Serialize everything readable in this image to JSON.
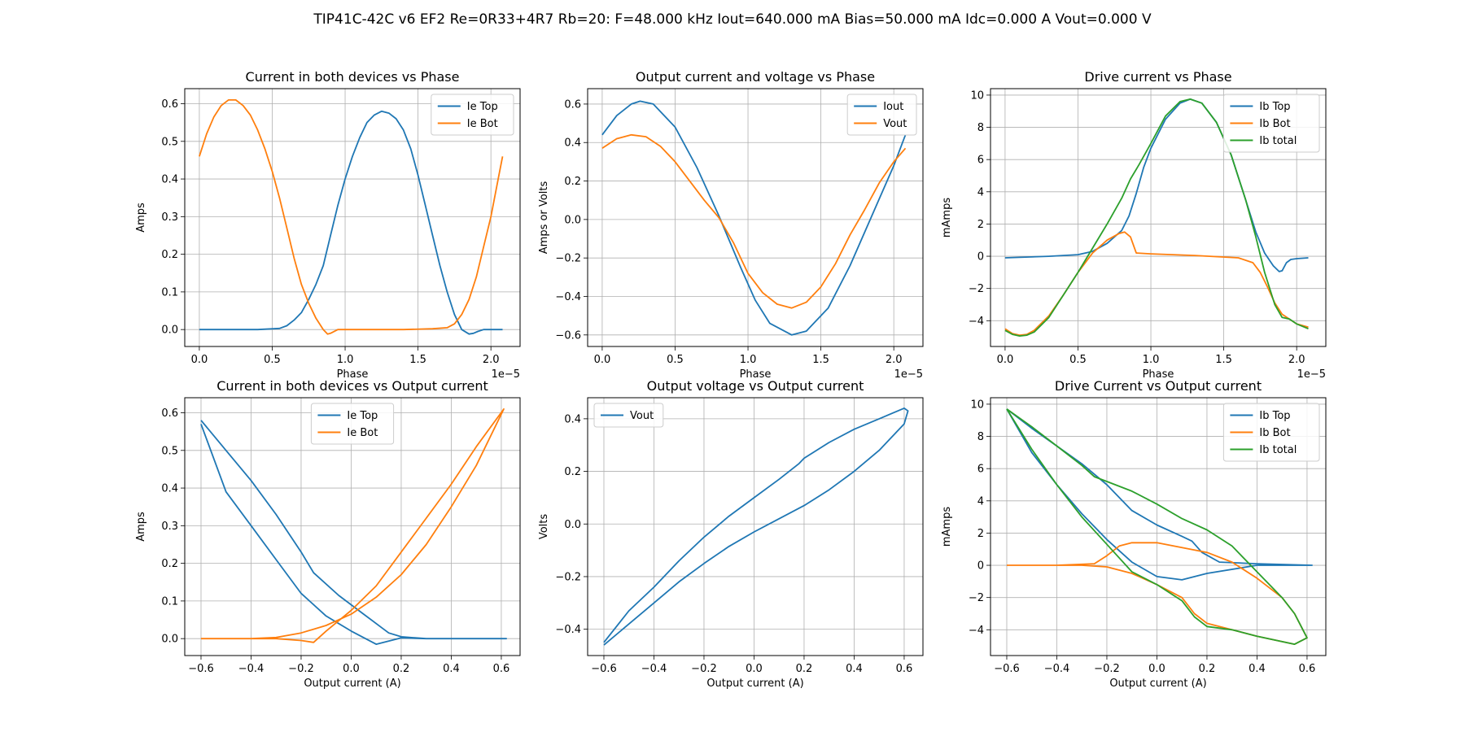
{
  "figure": {
    "title": "TIP41C-42C v6 EF2 Re=0R33+4R7 Rb=20: F=48.000 kHz Iout=640.000 mA Bias=50.000 mA Idc=0.000 A Vout=0.000 V"
  },
  "colors": {
    "blue": "#1f77b4",
    "orange": "#ff7f0e",
    "green": "#2ca02c"
  },
  "chart_data": [
    {
      "type": "line",
      "title": "Current in both devices vs Phase",
      "xlabel": "Phase",
      "ylabel": "Amps",
      "x_offset_label": "1e−5",
      "xlim": [
        -0.1,
        2.2
      ],
      "ylim": [
        -0.045,
        0.64
      ],
      "xticks": [
        0,
        0.5,
        1.0,
        1.5,
        2.0
      ],
      "xtick_labels": [
        "0.0",
        "0.5",
        "1.0",
        "1.5",
        "2.0"
      ],
      "yticks": [
        0,
        0.1,
        0.2,
        0.3,
        0.4,
        0.5,
        0.6
      ],
      "ytick_labels": [
        "0.0",
        "0.1",
        "0.2",
        "0.3",
        "0.4",
        "0.5",
        "0.6"
      ],
      "grid": true,
      "legend": "top-right",
      "series": [
        {
          "name": "Ie Top",
          "color": "#1f77b4",
          "x": [
            0,
            0.2,
            0.4,
            0.55,
            0.6,
            0.65,
            0.7,
            0.75,
            0.8,
            0.85,
            0.9,
            0.95,
            1.0,
            1.05,
            1.1,
            1.15,
            1.2,
            1.25,
            1.3,
            1.35,
            1.4,
            1.45,
            1.5,
            1.55,
            1.6,
            1.65,
            1.7,
            1.75,
            1.8,
            1.85,
            1.88,
            1.91,
            1.95,
            2.0,
            2.08
          ],
          "y": [
            0,
            0,
            0,
            0.003,
            0.01,
            0.025,
            0.045,
            0.08,
            0.12,
            0.17,
            0.25,
            0.33,
            0.4,
            0.46,
            0.51,
            0.55,
            0.57,
            0.58,
            0.575,
            0.56,
            0.53,
            0.48,
            0.41,
            0.33,
            0.25,
            0.17,
            0.1,
            0.04,
            0,
            -0.012,
            -0.01,
            -0.005,
            0,
            0,
            0
          ]
        },
        {
          "name": "Ie Bot",
          "color": "#ff7f0e",
          "x": [
            0,
            0.05,
            0.1,
            0.15,
            0.2,
            0.25,
            0.3,
            0.35,
            0.4,
            0.45,
            0.5,
            0.55,
            0.6,
            0.65,
            0.7,
            0.75,
            0.8,
            0.85,
            0.88,
            0.9,
            0.95,
            1.0,
            1.2,
            1.4,
            1.6,
            1.7,
            1.75,
            1.8,
            1.85,
            1.9,
            1.95,
            2.0,
            2.05,
            2.08
          ],
          "y": [
            0.46,
            0.52,
            0.565,
            0.595,
            0.61,
            0.61,
            0.595,
            0.57,
            0.53,
            0.48,
            0.42,
            0.35,
            0.27,
            0.19,
            0.12,
            0.07,
            0.03,
            0,
            -0.012,
            -0.01,
            0,
            0,
            0,
            0,
            0.002,
            0.005,
            0.015,
            0.04,
            0.08,
            0.14,
            0.22,
            0.3,
            0.4,
            0.46
          ]
        }
      ]
    },
    {
      "type": "line",
      "title": "Output current and voltage vs Phase",
      "xlabel": "Phase",
      "ylabel": "Amps or Volts",
      "x_offset_label": "1e−5",
      "xlim": [
        -0.1,
        2.2
      ],
      "ylim": [
        -0.66,
        0.68
      ],
      "xticks": [
        0,
        0.5,
        1.0,
        1.5,
        2.0
      ],
      "xtick_labels": [
        "0.0",
        "0.5",
        "1.0",
        "1.5",
        "2.0"
      ],
      "yticks": [
        -0.6,
        -0.4,
        -0.2,
        0,
        0.2,
        0.4,
        0.6
      ],
      "ytick_labels": [
        "−0.6",
        "−0.4",
        "−0.2",
        "0.0",
        "0.2",
        "0.4",
        "0.6"
      ],
      "grid": true,
      "legend": "top-right",
      "series": [
        {
          "name": "Iout",
          "color": "#1f77b4",
          "x": [
            0,
            0.1,
            0.2,
            0.26,
            0.35,
            0.5,
            0.65,
            0.8,
            0.95,
            1.05,
            1.15,
            1.3,
            1.4,
            1.55,
            1.7,
            1.85,
            2.0,
            2.08
          ],
          "y": [
            0.44,
            0.54,
            0.6,
            0.615,
            0.6,
            0.48,
            0.27,
            0.02,
            -0.25,
            -0.42,
            -0.54,
            -0.6,
            -0.58,
            -0.46,
            -0.24,
            0.02,
            0.28,
            0.44
          ]
        },
        {
          "name": "Vout",
          "color": "#ff7f0e",
          "x": [
            0,
            0.1,
            0.2,
            0.3,
            0.4,
            0.5,
            0.6,
            0.7,
            0.8,
            0.9,
            1.0,
            1.1,
            1.2,
            1.3,
            1.4,
            1.5,
            1.6,
            1.7,
            1.8,
            1.9,
            2.0,
            2.08
          ],
          "y": [
            0.37,
            0.42,
            0.44,
            0.43,
            0.38,
            0.3,
            0.2,
            0.1,
            0.01,
            -0.12,
            -0.28,
            -0.38,
            -0.44,
            -0.46,
            -0.43,
            -0.35,
            -0.23,
            -0.08,
            0.05,
            0.19,
            0.3,
            0.37
          ]
        }
      ]
    },
    {
      "type": "line",
      "title": "Drive current vs Phase",
      "xlabel": "Phase",
      "ylabel": "mAmps",
      "x_offset_label": "1e−5",
      "xlim": [
        -0.1,
        2.2
      ],
      "ylim": [
        -5.6,
        10.4
      ],
      "xticks": [
        0,
        0.5,
        1.0,
        1.5,
        2.0
      ],
      "xtick_labels": [
        "0.0",
        "0.5",
        "1.0",
        "1.5",
        "2.0"
      ],
      "yticks": [
        -4,
        -2,
        0,
        2,
        4,
        6,
        8,
        10
      ],
      "ytick_labels": [
        "−4",
        "−2",
        "0",
        "2",
        "4",
        "6",
        "8",
        "10"
      ],
      "grid": true,
      "legend": "top-right",
      "series": [
        {
          "name": "Ib Top",
          "color": "#1f77b4",
          "x": [
            0,
            0.3,
            0.5,
            0.6,
            0.7,
            0.8,
            0.85,
            0.9,
            0.95,
            1.0,
            1.1,
            1.2,
            1.27,
            1.35,
            1.45,
            1.55,
            1.65,
            1.72,
            1.78,
            1.84,
            1.88,
            1.9,
            1.93,
            1.96,
            2.0,
            2.08
          ],
          "y": [
            -0.1,
            0,
            0.1,
            0.3,
            0.8,
            1.6,
            2.5,
            3.9,
            5.5,
            6.7,
            8.5,
            9.5,
            9.75,
            9.5,
            8.3,
            6.3,
            3.5,
            1.5,
            0.2,
            -0.6,
            -0.95,
            -0.9,
            -0.4,
            -0.2,
            -0.15,
            -0.1
          ]
        },
        {
          "name": "Ib Bot",
          "color": "#ff7f0e",
          "x": [
            0,
            0.05,
            0.1,
            0.15,
            0.2,
            0.3,
            0.4,
            0.5,
            0.6,
            0.7,
            0.78,
            0.82,
            0.86,
            0.9,
            1.0,
            1.3,
            1.6,
            1.7,
            1.75,
            1.8,
            1.85,
            1.9,
            1.95,
            2.0,
            2.08
          ],
          "y": [
            -4.5,
            -4.8,
            -4.9,
            -4.85,
            -4.6,
            -3.7,
            -2.4,
            -1.0,
            0.2,
            1.0,
            1.4,
            1.5,
            1.2,
            0.2,
            0.15,
            0.05,
            -0.1,
            -0.4,
            -1.0,
            -1.9,
            -2.9,
            -3.6,
            -3.9,
            -4.2,
            -4.4
          ]
        },
        {
          "name": "Ib total",
          "color": "#2ca02c",
          "x": [
            0,
            0.05,
            0.1,
            0.15,
            0.2,
            0.3,
            0.4,
            0.5,
            0.6,
            0.7,
            0.8,
            0.86,
            0.92,
            1.0,
            1.1,
            1.2,
            1.27,
            1.35,
            1.45,
            1.55,
            1.65,
            1.72,
            1.78,
            1.85,
            1.9,
            1.95,
            2.0,
            2.08
          ],
          "y": [
            -4.6,
            -4.85,
            -4.95,
            -4.9,
            -4.7,
            -3.8,
            -2.4,
            -1.0,
            0.5,
            2.0,
            3.6,
            4.8,
            5.7,
            7.0,
            8.7,
            9.6,
            9.75,
            9.5,
            8.3,
            6.3,
            3.5,
            1.2,
            -1.0,
            -3.0,
            -3.8,
            -3.9,
            -4.2,
            -4.5
          ]
        }
      ]
    },
    {
      "type": "line",
      "title": "Current in both devices vs Output current",
      "xlabel": "Output current (A)",
      "ylabel": "Amps",
      "xlim": [
        -0.665,
        0.675
      ],
      "ylim": [
        -0.045,
        0.64
      ],
      "xticks": [
        -0.6,
        -0.4,
        -0.2,
        0,
        0.2,
        0.4,
        0.6
      ],
      "xtick_labels": [
        "−0.6",
        "−0.4",
        "−0.2",
        "0.0",
        "0.2",
        "0.4",
        "0.6"
      ],
      "yticks": [
        0,
        0.1,
        0.2,
        0.3,
        0.4,
        0.5,
        0.6
      ],
      "ytick_labels": [
        "0.0",
        "0.1",
        "0.2",
        "0.3",
        "0.4",
        "0.5",
        "0.6"
      ],
      "grid": true,
      "legend": "top-center",
      "series": [
        {
          "name": "Ie Top",
          "color": "#1f77b4",
          "x": [
            -0.6,
            -0.5,
            -0.4,
            -0.3,
            -0.2,
            -0.15,
            -0.05,
            0.05,
            0.12,
            0.15,
            0.2,
            0.3,
            0.45,
            0.62,
            0.45,
            0.3,
            0.2,
            0.1,
            0,
            -0.1,
            -0.2,
            -0.3,
            -0.4,
            -0.5,
            -0.6
          ],
          "y": [
            0.58,
            0.5,
            0.42,
            0.33,
            0.23,
            0.175,
            0.115,
            0.065,
            0.03,
            0.015,
            0.005,
            0,
            0,
            0,
            0,
            0,
            0.002,
            -0.015,
            0.02,
            0.06,
            0.12,
            0.21,
            0.3,
            0.39,
            0.57
          ]
        },
        {
          "name": "Ie Bot",
          "color": "#ff7f0e",
          "x": [
            -0.6,
            -0.4,
            -0.3,
            -0.2,
            -0.1,
            0,
            0.1,
            0.2,
            0.3,
            0.4,
            0.5,
            0.61,
            0.5,
            0.4,
            0.3,
            0.2,
            0.1,
            0,
            -0.1,
            -0.15,
            -0.2,
            -0.3,
            -0.4,
            -0.6
          ],
          "y": [
            0,
            0,
            0.003,
            0.015,
            0.035,
            0.065,
            0.11,
            0.17,
            0.25,
            0.35,
            0.46,
            0.61,
            0.51,
            0.41,
            0.32,
            0.23,
            0.14,
            0.075,
            0.02,
            -0.01,
            -0.005,
            0,
            0,
            0
          ]
        }
      ]
    },
    {
      "type": "line",
      "title": "Output voltage vs Output current",
      "xlabel": "Output current (A)",
      "ylabel": "Volts",
      "xlim": [
        -0.665,
        0.675
      ],
      "ylim": [
        -0.5,
        0.48
      ],
      "xticks": [
        -0.6,
        -0.4,
        -0.2,
        0,
        0.2,
        0.4,
        0.6
      ],
      "xtick_labels": [
        "−0.6",
        "−0.4",
        "−0.2",
        "0.0",
        "0.2",
        "0.4",
        "0.6"
      ],
      "yticks": [
        -0.4,
        -0.2,
        0,
        0.2,
        0.4
      ],
      "ytick_labels": [
        "−0.4",
        "−0.2",
        "0.0",
        "0.2",
        "0.4"
      ],
      "grid": true,
      "legend": "top-left",
      "series": [
        {
          "name": "Vout",
          "color": "#1f77b4",
          "x": [
            -0.6,
            -0.5,
            -0.4,
            -0.3,
            -0.2,
            -0.1,
            0,
            0.1,
            0.2,
            0.3,
            0.4,
            0.5,
            0.6,
            0.615,
            0.6,
            0.5,
            0.4,
            0.3,
            0.2,
            0.18,
            0.1,
            0,
            -0.1,
            -0.2,
            -0.3,
            -0.4,
            -0.5,
            -0.6
          ],
          "y": [
            -0.46,
            -0.38,
            -0.3,
            -0.22,
            -0.15,
            -0.085,
            -0.03,
            0.02,
            0.07,
            0.13,
            0.2,
            0.28,
            0.38,
            0.43,
            0.44,
            0.4,
            0.36,
            0.31,
            0.25,
            0.23,
            0.17,
            0.1,
            0.03,
            -0.05,
            -0.14,
            -0.24,
            -0.33,
            -0.45
          ]
        }
      ]
    },
    {
      "type": "line",
      "title": "Drive Current vs Output current",
      "xlabel": "Output current (A)",
      "ylabel": "mAmps",
      "xlim": [
        -0.665,
        0.675
      ],
      "ylim": [
        -5.6,
        10.4
      ],
      "xticks": [
        -0.6,
        -0.4,
        -0.2,
        0,
        0.2,
        0.4,
        0.6
      ],
      "xtick_labels": [
        "−0.6",
        "−0.4",
        "−0.2",
        "0.0",
        "0.2",
        "0.4",
        "0.6"
      ],
      "yticks": [
        -4,
        -2,
        0,
        2,
        4,
        6,
        8,
        10
      ],
      "ytick_labels": [
        "−4",
        "−2",
        "0",
        "2",
        "4",
        "6",
        "8",
        "10"
      ],
      "grid": true,
      "legend": "top-right",
      "series": [
        {
          "name": "Ib Top",
          "color": "#1f77b4",
          "x": [
            -0.6,
            -0.5,
            -0.4,
            -0.3,
            -0.2,
            -0.1,
            0,
            0.1,
            0.14,
            0.18,
            0.25,
            0.4,
            0.62,
            0.4,
            0.2,
            0.1,
            0,
            -0.1,
            -0.2,
            -0.3,
            -0.4,
            -0.5,
            -0.6
          ],
          "y": [
            9.7,
            8.5,
            7.4,
            6.3,
            5.0,
            3.4,
            2.5,
            1.8,
            1.5,
            0.8,
            0.2,
            0.1,
            0,
            0,
            -0.5,
            -0.9,
            -0.7,
            0.2,
            1.6,
            3.2,
            5.0,
            7.0,
            9.7
          ]
        },
        {
          "name": "Ib Bot",
          "color": "#ff7f0e",
          "x": [
            -0.6,
            -0.4,
            -0.25,
            -0.2,
            -0.15,
            -0.1,
            0,
            0.1,
            0.2,
            0.3,
            0.4,
            0.5,
            0.55,
            0.6,
            0.55,
            0.4,
            0.3,
            0.2,
            0.15,
            0.1,
            0,
            -0.1,
            -0.2,
            -0.3,
            -0.4,
            -0.6
          ],
          "y": [
            0,
            0,
            0.1,
            0.6,
            1.2,
            1.4,
            1.4,
            1.1,
            0.8,
            0.2,
            -0.8,
            -2.0,
            -3.0,
            -4.5,
            -4.9,
            -4.4,
            -4.0,
            -3.6,
            -3.0,
            -2.0,
            -1.2,
            -0.5,
            -0.1,
            0,
            0,
            0
          ]
        },
        {
          "name": "Ib total",
          "color": "#2ca02c",
          "x": [
            -0.6,
            -0.5,
            -0.4,
            -0.3,
            -0.25,
            -0.2,
            -0.1,
            0,
            0.1,
            0.2,
            0.3,
            0.4,
            0.5,
            0.55,
            0.6,
            0.55,
            0.4,
            0.3,
            0.2,
            0.15,
            0.1,
            0,
            -0.1,
            -0.2,
            -0.3,
            -0.4,
            -0.5,
            -0.6
          ],
          "y": [
            9.7,
            8.6,
            7.4,
            6.2,
            5.5,
            5.2,
            4.6,
            3.8,
            2.9,
            2.2,
            1.2,
            -0.4,
            -2.0,
            -3.0,
            -4.5,
            -4.9,
            -4.4,
            -4.0,
            -3.8,
            -3.2,
            -2.2,
            -1.2,
            -0.4,
            1.3,
            3.0,
            5.0,
            7.2,
            9.7
          ]
        }
      ]
    }
  ]
}
